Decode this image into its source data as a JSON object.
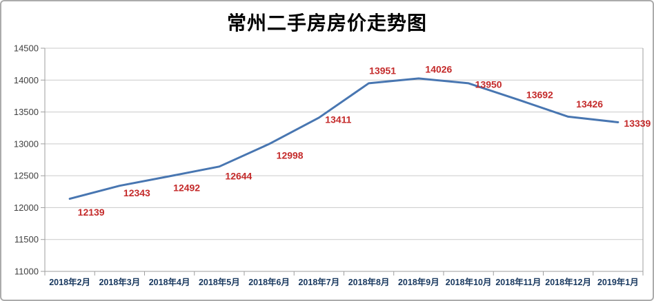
{
  "page": {
    "background": "#ffffff",
    "border_color": "#ababab"
  },
  "chart_data": {
    "type": "line",
    "title": "常州二手房房价走势图",
    "xlabel": "",
    "ylabel": "",
    "categories": [
      "2018年2月",
      "2018年3月",
      "2018年4月",
      "2018年5月",
      "2018年6月",
      "2018年7月",
      "2018年8月",
      "2018年9月",
      "2018年10月",
      "2018年11月",
      "2018年12月",
      "2019年1月"
    ],
    "values": [
      12139,
      12343,
      12492,
      12644,
      12998,
      13411,
      13951,
      14026,
      13950,
      13692,
      13426,
      13339
    ],
    "data_labels_shown": true,
    "ylim": [
      11000,
      14500
    ],
    "ytick_step": 500,
    "y_ticks": [
      11000,
      11500,
      12000,
      12500,
      13000,
      13500,
      14000,
      14500
    ],
    "grid": true,
    "legend": false,
    "colors": {
      "line": "#4876B1",
      "data_label": "#C42A2A",
      "x_tick_label": "#17375E",
      "y_tick_label": "#404040",
      "gridline": "#C9C9C9",
      "axis": "#9E9E9E",
      "title": "#000000"
    }
  }
}
